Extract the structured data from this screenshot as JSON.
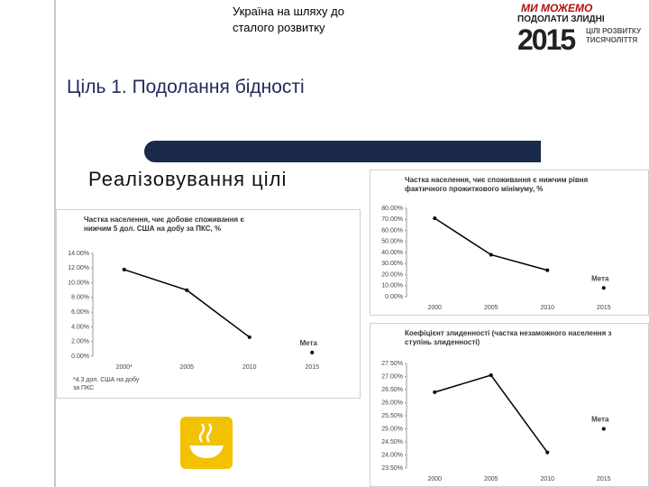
{
  "header": {
    "caption": "Україна на шляху до сталого розвитку",
    "logo": {
      "top": "МИ МОЖЕМО",
      "middle": "ПОДОЛАТИ ЗЛИДНІ",
      "year": "2015",
      "side": "ЦІЛІ РОЗВИТКУ ТИСЯЧОЛІТТЯ"
    }
  },
  "title": "Ціль 1. Подолання бідності",
  "subtitle": "Реалізовування цілі",
  "chart_data": [
    {
      "type": "line",
      "title": "Частка населення, чиє добове споживання є нижчим 5 дол. США на добу за ПКС, %",
      "categories": [
        "2000*",
        "2005",
        "2010",
        "2015"
      ],
      "series": [
        {
          "color": "#000000",
          "values": [
            11.8,
            9.0,
            2.6,
            null
          ]
        },
        {
          "name": "Мета",
          "color": "#000000",
          "values": [
            null,
            null,
            null,
            0.5
          ]
        }
      ],
      "ylim": [
        0,
        14
      ],
      "yticks": [
        {
          "value": 0,
          "label": "0.00%"
        },
        {
          "value": 2,
          "label": "2.00%"
        },
        {
          "value": 4,
          "label": "4.00%"
        },
        {
          "value": 6,
          "label": "6.00%"
        },
        {
          "value": 8,
          "label": "8.00%"
        },
        {
          "value": 10,
          "label": "10.00%"
        },
        {
          "value": 12,
          "label": "12.00%"
        },
        {
          "value": 14,
          "label": "14.00%"
        }
      ],
      "footnote": "*4.3 дол. США на добу за ПКС"
    },
    {
      "type": "line",
      "title": "Частка населення, чиє споживання є нижчим рівня фактичного прожиткового мінімуму, %",
      "categories": [
        "2000",
        "2005",
        "2010",
        "2015"
      ],
      "series": [
        {
          "color": "#000000",
          "values": [
            71,
            38,
            24,
            null
          ]
        },
        {
          "name": "Мета",
          "color": "#000000",
          "values": [
            null,
            null,
            null,
            8
          ]
        }
      ],
      "ylim": [
        0,
        80
      ],
      "yticks": [
        {
          "value": 0,
          "label": "0.00%"
        },
        {
          "value": 10,
          "label": "10.00%"
        },
        {
          "value": 20,
          "label": "20.00%"
        },
        {
          "value": 30,
          "label": "30.00%"
        },
        {
          "value": 40,
          "label": "40.00%"
        },
        {
          "value": 50,
          "label": "50.00%"
        },
        {
          "value": 60,
          "label": "60.00%"
        },
        {
          "value": 70,
          "label": "70.00%"
        },
        {
          "value": 80,
          "label": "80.00%"
        }
      ]
    },
    {
      "type": "line",
      "title": "Коефіцієнт злиденності (частка незаможного населення з ступінь злиденності)",
      "categories": [
        "2000",
        "2005",
        "2010",
        "2015"
      ],
      "series": [
        {
          "color": "#000000",
          "values": [
            26.4,
            27.05,
            24.1,
            null
          ]
        },
        {
          "name": "Мета",
          "color": "#000000",
          "values": [
            null,
            null,
            null,
            25.0
          ]
        }
      ],
      "ylim": [
        23.5,
        27.5
      ],
      "yticks": [
        {
          "value": 23.5,
          "label": "23.50%"
        },
        {
          "value": 24,
          "label": "24.00%"
        },
        {
          "value": 24.5,
          "label": "24.50%"
        },
        {
          "value": 25,
          "label": "25.00%"
        },
        {
          "value": 25.5,
          "label": "25.50%"
        },
        {
          "value": 26,
          "label": "26.00%"
        },
        {
          "value": 26.5,
          "label": "26.50%"
        },
        {
          "value": 27,
          "label": "27.00%"
        },
        {
          "value": 27.5,
          "label": "27.50%"
        }
      ]
    }
  ]
}
